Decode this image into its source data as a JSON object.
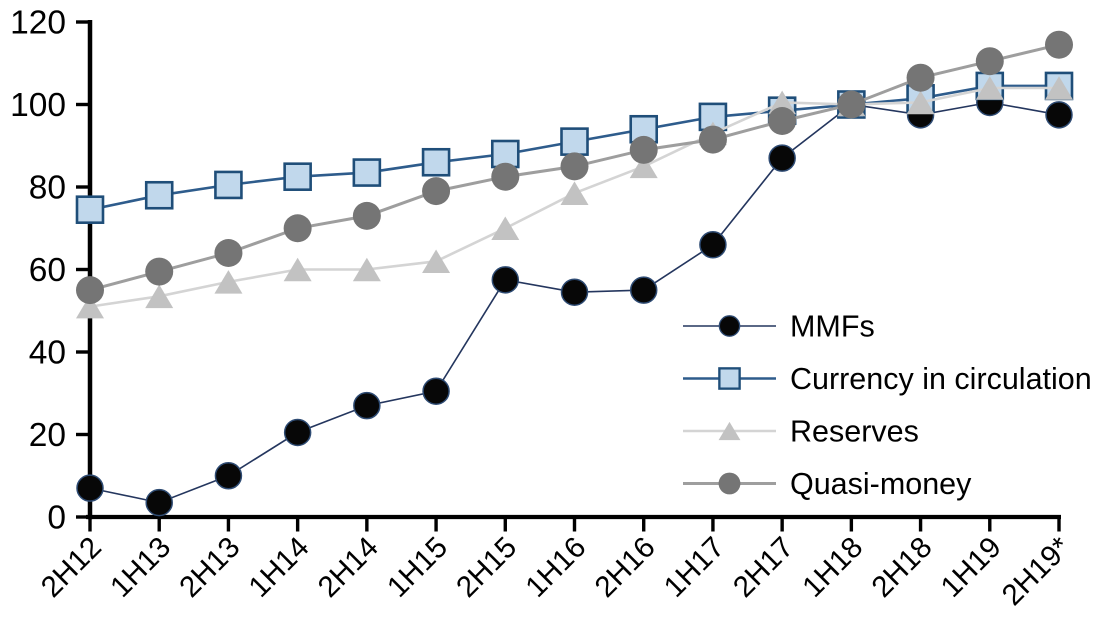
{
  "chart_data": {
    "type": "line",
    "title": "",
    "xlabel": "",
    "ylabel": "",
    "grid": false,
    "legend_position": "inside-right",
    "categories": [
      "2H12",
      "1H13",
      "2H13",
      "1H14",
      "2H14",
      "1H15",
      "2H15",
      "1H16",
      "2H16",
      "1H17",
      "2H17",
      "1H18",
      "2H18",
      "1H19",
      "2H19*"
    ],
    "yaxis": {
      "min": 0,
      "max": 120,
      "step": 20,
      "tick_labels": [
        "0",
        "20",
        "40",
        "60",
        "80",
        "100",
        "120"
      ]
    },
    "series": [
      {
        "name": "MMFs",
        "marker": "circle",
        "values": [
          7,
          3.5,
          10,
          20.5,
          27,
          30.5,
          57.5,
          54.5,
          55,
          66,
          87,
          100,
          97.5,
          100.5,
          97.5
        ],
        "line_color": "#24365E",
        "line_width": 1.6,
        "marker_fill": "#070707",
        "marker_stroke": "#2E4B73",
        "marker_stroke_width": 1.5,
        "marker_size": 26
      },
      {
        "name": "Currency in circulation",
        "marker": "square",
        "values": [
          74.5,
          78,
          80.5,
          82.5,
          83.5,
          86,
          88,
          91,
          94,
          97,
          98.5,
          100,
          101.5,
          104.5,
          104.5
        ],
        "line_color": "#2E5C8C",
        "line_width": 2.6,
        "marker_fill": "#C1D8EC",
        "marker_stroke": "#1F4E79",
        "marker_stroke_width": 2.6,
        "marker_size": 26
      },
      {
        "name": "Reserves",
        "marker": "triangle",
        "values": [
          51,
          53.5,
          57,
          60,
          60,
          62,
          70,
          78.5,
          85,
          93,
          100.5,
          100,
          100.5,
          104,
          104
        ],
        "line_color": "#D4D4D4",
        "line_width": 2.6,
        "marker_fill": "#C2C2C2",
        "marker_stroke": "none",
        "marker_stroke_width": 0,
        "marker_size": 28
      },
      {
        "name": "Quasi-money",
        "marker": "circle",
        "values": [
          55,
          59.5,
          64,
          70,
          73,
          79,
          82.5,
          85,
          89,
          91.5,
          96,
          100,
          106.5,
          110.5,
          114.5
        ],
        "line_color": "#9E9E9E",
        "line_width": 3,
        "marker_fill": "#757575",
        "marker_stroke": "none",
        "marker_stroke_width": 0,
        "marker_size": 28
      }
    ],
    "axis_color": "#000000",
    "background_color": "#FFFFFF"
  }
}
